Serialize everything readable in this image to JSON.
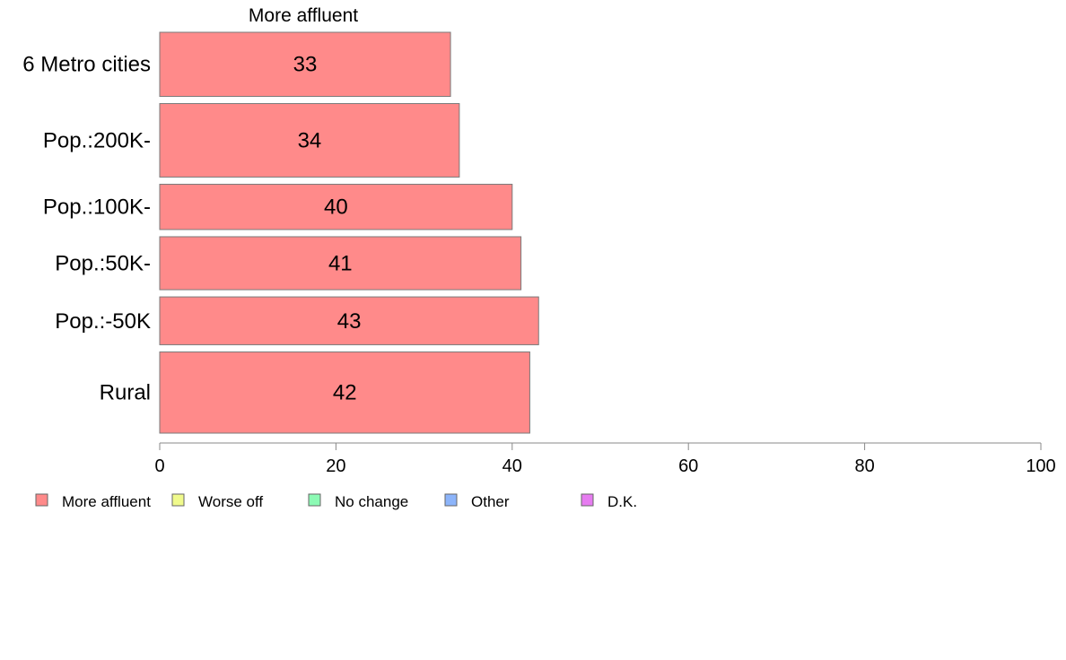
{
  "chart_data": {
    "type": "bar",
    "orientation": "horizontal",
    "title": "",
    "series_title": "More affluent",
    "categories": [
      "6 Metro cities",
      "Pop.:200K-",
      "Pop.:100K-",
      "Pop.:50K-",
      "Pop.:-50K",
      "Rural"
    ],
    "series": [
      {
        "name": "More affluent",
        "values": [
          33,
          34,
          40,
          41,
          43,
          42
        ]
      }
    ],
    "bar_weights": [
      0.75,
      0.86,
      0.53,
      0.62,
      0.56,
      0.95
    ],
    "xlim": [
      0,
      100
    ],
    "xticks": [
      0,
      20,
      40,
      60,
      80,
      100
    ],
    "xlabel": "",
    "ylabel": "",
    "grid": false,
    "legend": {
      "position": "bottom-left",
      "entries": [
        {
          "label": "More affluent",
          "color": "#ff8a8a"
        },
        {
          "label": "Worse off",
          "color": "#f0fa8c"
        },
        {
          "label": "No change",
          "color": "#8cfab4"
        },
        {
          "label": "Other",
          "color": "#8cb4fa"
        },
        {
          "label": "D.K.",
          "color": "#e67cf0"
        }
      ]
    },
    "colors": {
      "bar": "#ff8a8a",
      "bar_stroke": "#7a7a7a",
      "axis": "#888888"
    }
  }
}
